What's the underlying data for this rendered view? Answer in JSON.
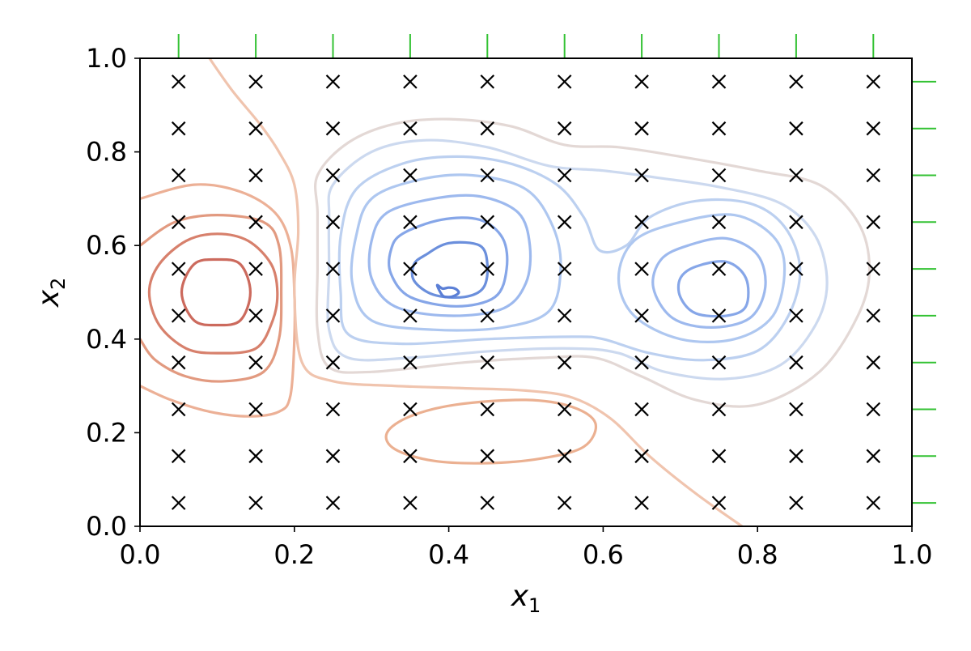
{
  "chart_data": {
    "type": "contour",
    "xlabel": {
      "base": "x",
      "sub": "1"
    },
    "ylabel": {
      "base": "x",
      "sub": "2"
    },
    "xlim": [
      0,
      1
    ],
    "ylim": [
      0,
      1
    ],
    "xticks": [
      0.0,
      0.2,
      0.4,
      0.6,
      0.8,
      1.0
    ],
    "yticks": [
      0.0,
      0.2,
      0.4,
      0.6,
      0.8,
      1.0
    ],
    "xtick_labels": [
      "0.0",
      "0.2",
      "0.4",
      "0.6",
      "0.8",
      "1.0"
    ],
    "ytick_labels": [
      "0.0",
      "0.2",
      "0.4",
      "0.6",
      "0.8",
      "1.0"
    ],
    "grid": false,
    "sample_points": {
      "marker": "x",
      "color": "#000000",
      "x": [
        0.05,
        0.15,
        0.25,
        0.35,
        0.45,
        0.55,
        0.65,
        0.75,
        0.85,
        0.95
      ],
      "y": [
        0.05,
        0.15,
        0.25,
        0.35,
        0.45,
        0.55,
        0.65,
        0.75,
        0.85,
        0.95
      ]
    },
    "rug_ticks": {
      "color": "#33c233",
      "top_x": [
        0.05,
        0.15,
        0.25,
        0.35,
        0.45,
        0.55,
        0.65,
        0.75,
        0.85,
        0.95
      ],
      "right_y": [
        0.05,
        0.15,
        0.25,
        0.35,
        0.45,
        0.55,
        0.65,
        0.75,
        0.85,
        0.95
      ]
    },
    "colormap": "coolwarm",
    "contours": [
      {
        "level": "red-4",
        "color": "#cc6a5d",
        "points": [
          [
            0.1,
            0.43
          ],
          [
            0.13,
            0.44
          ],
          [
            0.143,
            0.5
          ],
          [
            0.13,
            0.56
          ],
          [
            0.1,
            0.57
          ],
          [
            0.07,
            0.56
          ],
          [
            0.054,
            0.5
          ],
          [
            0.07,
            0.44
          ]
        ]
      },
      {
        "level": "red-3",
        "color": "#d7806c",
        "points": [
          [
            0.1,
            0.37
          ],
          [
            0.15,
            0.38
          ],
          [
            0.172,
            0.44
          ],
          [
            0.178,
            0.5
          ],
          [
            0.17,
            0.56
          ],
          [
            0.14,
            0.61
          ],
          [
            0.1,
            0.625
          ],
          [
            0.06,
            0.61
          ],
          [
            0.025,
            0.56
          ],
          [
            0.012,
            0.5
          ],
          [
            0.025,
            0.43
          ],
          [
            0.06,
            0.38
          ]
        ]
      },
      {
        "level": "red-2",
        "color": "#e29a80",
        "points": [
          [
            0.0,
            0.4
          ],
          [
            0.02,
            0.355
          ],
          [
            0.06,
            0.32
          ],
          [
            0.11,
            0.31
          ],
          [
            0.16,
            0.33
          ],
          [
            0.18,
            0.4
          ],
          [
            0.183,
            0.5
          ],
          [
            0.18,
            0.6
          ],
          [
            0.16,
            0.65
          ],
          [
            0.1,
            0.665
          ],
          [
            0.045,
            0.65
          ],
          [
            0.0,
            0.6
          ]
        ],
        "open": true
      },
      {
        "level": "red-1",
        "color": "#ecb096",
        "points": [
          [
            0.0,
            0.3
          ],
          [
            0.04,
            0.27
          ],
          [
            0.09,
            0.245
          ],
          [
            0.14,
            0.235
          ],
          [
            0.18,
            0.245
          ],
          [
            0.195,
            0.28
          ],
          [
            0.2,
            0.4
          ],
          [
            0.2,
            0.5
          ],
          [
            0.195,
            0.6
          ],
          [
            0.175,
            0.67
          ],
          [
            0.13,
            0.715
          ],
          [
            0.07,
            0.73
          ],
          [
            0.0,
            0.7
          ]
        ],
        "open": true
      },
      {
        "level": "red-0",
        "color": "#f0c4ae",
        "points": [
          [
            0.09,
            1.0
          ],
          [
            0.12,
            0.93
          ],
          [
            0.155,
            0.86
          ],
          [
            0.18,
            0.8
          ],
          [
            0.2,
            0.73
          ],
          [
            0.205,
            0.63
          ],
          [
            0.2,
            0.5
          ],
          [
            0.21,
            0.35
          ],
          [
            0.25,
            0.31
          ],
          [
            0.33,
            0.3
          ],
          [
            0.42,
            0.295
          ],
          [
            0.5,
            0.29
          ],
          [
            0.56,
            0.275
          ],
          [
            0.61,
            0.23
          ],
          [
            0.66,
            0.15
          ],
          [
            0.72,
            0.07
          ],
          [
            0.78,
            0.0
          ]
        ],
        "open": true
      },
      {
        "level": "red-low",
        "color": "#ebb091",
        "points": [
          [
            0.32,
            0.2
          ],
          [
            0.35,
            0.235
          ],
          [
            0.41,
            0.26
          ],
          [
            0.5,
            0.27
          ],
          [
            0.56,
            0.255
          ],
          [
            0.59,
            0.22
          ],
          [
            0.575,
            0.17
          ],
          [
            0.52,
            0.145
          ],
          [
            0.45,
            0.135
          ],
          [
            0.38,
            0.14
          ],
          [
            0.33,
            0.165
          ]
        ]
      },
      {
        "level": "neutral",
        "color": "#e3d8d5",
        "points": [
          [
            0.23,
            0.75
          ],
          [
            0.27,
            0.82
          ],
          [
            0.33,
            0.86
          ],
          [
            0.4,
            0.87
          ],
          [
            0.48,
            0.855
          ],
          [
            0.55,
            0.815
          ],
          [
            0.62,
            0.81
          ],
          [
            0.7,
            0.79
          ],
          [
            0.8,
            0.76
          ],
          [
            0.88,
            0.73
          ],
          [
            0.93,
            0.65
          ],
          [
            0.945,
            0.55
          ],
          [
            0.93,
            0.45
          ],
          [
            0.88,
            0.33
          ],
          [
            0.8,
            0.26
          ],
          [
            0.72,
            0.27
          ],
          [
            0.65,
            0.32
          ],
          [
            0.59,
            0.36
          ],
          [
            0.52,
            0.36
          ],
          [
            0.42,
            0.35
          ],
          [
            0.3,
            0.33
          ],
          [
            0.245,
            0.34
          ],
          [
            0.23,
            0.42
          ],
          [
            0.23,
            0.55
          ],
          [
            0.23,
            0.67
          ]
        ]
      },
      {
        "level": "blue-1",
        "color": "#ccd9ef",
        "points": [
          [
            0.25,
            0.73
          ],
          [
            0.3,
            0.8
          ],
          [
            0.37,
            0.825
          ],
          [
            0.45,
            0.81
          ],
          [
            0.53,
            0.77
          ],
          [
            0.6,
            0.76
          ],
          [
            0.67,
            0.745
          ],
          [
            0.75,
            0.725
          ],
          [
            0.83,
            0.69
          ],
          [
            0.875,
            0.62
          ],
          [
            0.89,
            0.52
          ],
          [
            0.875,
            0.43
          ],
          [
            0.83,
            0.345
          ],
          [
            0.76,
            0.315
          ],
          [
            0.68,
            0.33
          ],
          [
            0.62,
            0.37
          ],
          [
            0.56,
            0.38
          ],
          [
            0.46,
            0.375
          ],
          [
            0.35,
            0.36
          ],
          [
            0.27,
            0.36
          ],
          [
            0.245,
            0.42
          ],
          [
            0.245,
            0.55
          ],
          [
            0.245,
            0.66
          ]
        ]
      },
      {
        "level": "blue-2",
        "color": "#bcd0f0",
        "points": [
          [
            0.28,
            0.72
          ],
          [
            0.34,
            0.775
          ],
          [
            0.41,
            0.79
          ],
          [
            0.48,
            0.775
          ],
          [
            0.54,
            0.73
          ],
          [
            0.575,
            0.66
          ],
          [
            0.595,
            0.59
          ],
          [
            0.63,
            0.6
          ],
          [
            0.66,
            0.66
          ],
          [
            0.72,
            0.695
          ],
          [
            0.79,
            0.69
          ],
          [
            0.835,
            0.64
          ],
          [
            0.855,
            0.55
          ],
          [
            0.84,
            0.45
          ],
          [
            0.8,
            0.375
          ],
          [
            0.73,
            0.355
          ],
          [
            0.66,
            0.37
          ],
          [
            0.6,
            0.4
          ],
          [
            0.56,
            0.405
          ],
          [
            0.45,
            0.4
          ],
          [
            0.34,
            0.39
          ],
          [
            0.27,
            0.41
          ],
          [
            0.26,
            0.5
          ],
          [
            0.26,
            0.62
          ]
        ]
      },
      {
        "level": "blue-3",
        "color": "#aec7f0",
        "points": [
          [
            0.3,
            0.7
          ],
          [
            0.36,
            0.74
          ],
          [
            0.43,
            0.75
          ],
          [
            0.5,
            0.72
          ],
          [
            0.535,
            0.64
          ],
          [
            0.545,
            0.55
          ],
          [
            0.53,
            0.46
          ],
          [
            0.47,
            0.425
          ],
          [
            0.38,
            0.42
          ],
          [
            0.3,
            0.44
          ],
          [
            0.275,
            0.52
          ],
          [
            0.28,
            0.62
          ]
        ]
      },
      {
        "level": "blue-3b",
        "color": "#aec7f0",
        "points": [
          [
            0.7,
            0.65
          ],
          [
            0.77,
            0.665
          ],
          [
            0.82,
            0.62
          ],
          [
            0.835,
            0.55
          ],
          [
            0.82,
            0.45
          ],
          [
            0.77,
            0.4
          ],
          [
            0.7,
            0.4
          ],
          [
            0.64,
            0.45
          ],
          [
            0.62,
            0.53
          ],
          [
            0.64,
            0.61
          ]
        ]
      },
      {
        "level": "blue-4",
        "color": "#9db9ee",
        "points": [
          [
            0.32,
            0.67
          ],
          [
            0.38,
            0.7
          ],
          [
            0.44,
            0.705
          ],
          [
            0.49,
            0.67
          ],
          [
            0.505,
            0.6
          ],
          [
            0.5,
            0.52
          ],
          [
            0.47,
            0.465
          ],
          [
            0.4,
            0.45
          ],
          [
            0.33,
            0.47
          ],
          [
            0.3,
            0.53
          ],
          [
            0.3,
            0.61
          ]
        ]
      },
      {
        "level": "blue-4b",
        "color": "#9db9ee",
        "points": [
          [
            0.71,
            0.6
          ],
          [
            0.76,
            0.615
          ],
          [
            0.8,
            0.58
          ],
          [
            0.81,
            0.51
          ],
          [
            0.79,
            0.445
          ],
          [
            0.74,
            0.425
          ],
          [
            0.69,
            0.445
          ],
          [
            0.665,
            0.51
          ],
          [
            0.675,
            0.57
          ]
        ]
      },
      {
        "level": "blue-5",
        "color": "#86a6e8",
        "points": [
          [
            0.34,
            0.625
          ],
          [
            0.39,
            0.655
          ],
          [
            0.44,
            0.655
          ],
          [
            0.47,
            0.615
          ],
          [
            0.475,
            0.55
          ],
          [
            0.46,
            0.49
          ],
          [
            0.41,
            0.47
          ],
          [
            0.35,
            0.49
          ],
          [
            0.325,
            0.54
          ],
          [
            0.325,
            0.59
          ]
        ]
      },
      {
        "level": "blue-5b",
        "color": "#86a6e8",
        "points": [
          [
            0.72,
            0.555
          ],
          [
            0.76,
            0.565
          ],
          [
            0.785,
            0.53
          ],
          [
            0.785,
            0.47
          ],
          [
            0.76,
            0.45
          ],
          [
            0.72,
            0.455
          ],
          [
            0.7,
            0.49
          ],
          [
            0.7,
            0.53
          ]
        ]
      },
      {
        "level": "blue-6",
        "color": "#6b8fdc",
        "points": [
          [
            0.37,
            0.58
          ],
          [
            0.4,
            0.605
          ],
          [
            0.44,
            0.6
          ],
          [
            0.45,
            0.56
          ],
          [
            0.445,
            0.51
          ],
          [
            0.42,
            0.49
          ],
          [
            0.38,
            0.495
          ],
          [
            0.355,
            0.525
          ],
          [
            0.355,
            0.56
          ]
        ]
      },
      {
        "level": "blue-7",
        "color": "#5b7fd6",
        "points": [
          [
            0.385,
            0.515
          ],
          [
            0.392,
            0.493
          ],
          [
            0.4,
            0.49
          ],
          [
            0.408,
            0.493
          ],
          [
            0.413,
            0.5
          ],
          [
            0.408,
            0.508
          ],
          [
            0.4,
            0.51
          ],
          [
            0.392,
            0.508
          ]
        ]
      }
    ]
  }
}
